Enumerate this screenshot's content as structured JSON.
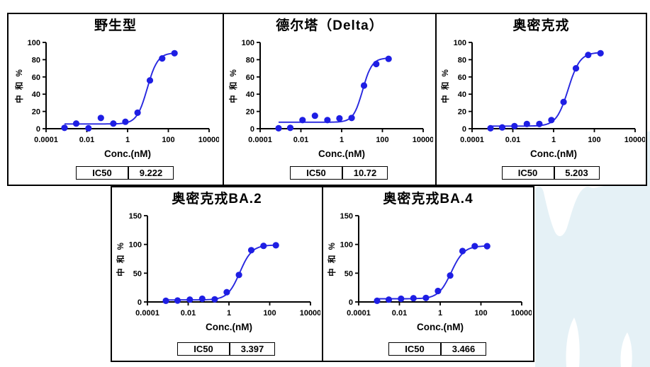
{
  "colors": {
    "point": "#1E1EE4",
    "curve": "#2727DF",
    "axis": "#000000",
    "tick_text": "#000000",
    "watermark": "#E5F1F6"
  },
  "chart_data": [
    {
      "type": "scatter",
      "title": "野生型",
      "xlabel": "Conc.(nM)",
      "ylabel": "中 和 %",
      "xscale": "log",
      "xlim": [
        0.0001,
        10000
      ],
      "ylim": [
        0,
        100
      ],
      "yticks": [
        0,
        20,
        40,
        60,
        80,
        100
      ],
      "xtick_labels": [
        "0.0001",
        "0.01",
        "1",
        "100",
        "10000"
      ],
      "x": [
        0.0008,
        0.003,
        0.012,
        0.049,
        0.2,
        0.78,
        3.1,
        12.5,
        50,
        200
      ],
      "y": [
        1,
        6,
        0.5,
        12.5,
        6,
        8,
        18.5,
        56,
        81.5,
        87.5
      ],
      "fit": {
        "model": "4PL",
        "bottom": 5.5,
        "top": 88,
        "ic50": 9.222,
        "hill": 1.7
      },
      "ic50_label": "IC50",
      "ic50_value": "9.222"
    },
    {
      "type": "scatter",
      "title": "德尔塔（Delta）",
      "xlabel": "Conc.(nM)",
      "ylabel": "中 和 %",
      "xscale": "log",
      "xlim": [
        0.0001,
        10000
      ],
      "ylim": [
        0,
        100
      ],
      "yticks": [
        0,
        20,
        40,
        60,
        80,
        100
      ],
      "xtick_labels": [
        "0.0001",
        "0.01",
        "1",
        "100",
        "10000"
      ],
      "x": [
        0.0008,
        0.003,
        0.012,
        0.049,
        0.2,
        0.78,
        3.1,
        12.5,
        50,
        200
      ],
      "y": [
        0.5,
        1,
        10,
        15,
        10,
        12,
        12.5,
        50,
        75,
        81
      ],
      "fit": {
        "model": "4PL",
        "bottom": 7.5,
        "top": 82,
        "ic50": 10.72,
        "hill": 1.9
      },
      "ic50_label": "IC50",
      "ic50_value": "10.72"
    },
    {
      "type": "scatter",
      "title": "奥密克戎",
      "xlabel": "Conc.(nM)",
      "ylabel": "中 和 %",
      "xscale": "log",
      "xlim": [
        0.0001,
        10000
      ],
      "ylim": [
        0,
        100
      ],
      "yticks": [
        0,
        20,
        40,
        60,
        80,
        100
      ],
      "xtick_labels": [
        "0.0001",
        "0.01",
        "1",
        "100",
        "10000"
      ],
      "x": [
        0.0008,
        0.003,
        0.012,
        0.049,
        0.2,
        0.78,
        3.1,
        12.5,
        50,
        200
      ],
      "y": [
        0.5,
        1.5,
        3,
        5.5,
        5.5,
        10,
        31,
        70,
        85.5,
        87.5
      ],
      "fit": {
        "model": "4PL",
        "bottom": 3,
        "top": 88.5,
        "ic50": 5.203,
        "hill": 1.5
      },
      "ic50_label": "IC50",
      "ic50_value": "5.203"
    },
    {
      "type": "scatter",
      "title": "奥密克戎BA.2",
      "xlabel": "Conc.(nM)",
      "ylabel": "中 和 %",
      "xscale": "log",
      "xlim": [
        0.0001,
        10000
      ],
      "ylim": [
        0,
        150
      ],
      "yticks": [
        0,
        50,
        100,
        150
      ],
      "xtick_labels": [
        "0.0001",
        "0.01",
        "1",
        "100",
        "10000"
      ],
      "x": [
        0.0008,
        0.003,
        0.012,
        0.049,
        0.2,
        0.78,
        3.1,
        12.5,
        50,
        200
      ],
      "y": [
        2,
        2.5,
        4,
        5.5,
        4.5,
        17,
        47,
        90,
        97.5,
        98.5
      ],
      "fit": {
        "model": "4PL",
        "bottom": 3.5,
        "top": 99,
        "ic50": 3.397,
        "hill": 1.45
      },
      "ic50_label": "IC50",
      "ic50_value": "3.397"
    },
    {
      "type": "scatter",
      "title": "奥密克戎BA.4",
      "xlabel": "Conc.(nM)",
      "ylabel": "中 和 %",
      "xscale": "log",
      "xlim": [
        0.0001,
        10000
      ],
      "ylim": [
        0,
        150
      ],
      "yticks": [
        0,
        50,
        100,
        150
      ],
      "xtick_labels": [
        "0.0001",
        "0.01",
        "1",
        "100",
        "10000"
      ],
      "x": [
        0.0008,
        0.003,
        0.012,
        0.049,
        0.2,
        0.78,
        3.1,
        12.5,
        50,
        200
      ],
      "y": [
        2,
        4,
        5.5,
        6.5,
        7,
        19,
        46,
        88.5,
        97,
        97
      ],
      "fit": {
        "model": "4PL",
        "bottom": 5.5,
        "top": 97.5,
        "ic50": 3.466,
        "hill": 1.4
      },
      "ic50_label": "IC50",
      "ic50_value": "3.466"
    }
  ]
}
